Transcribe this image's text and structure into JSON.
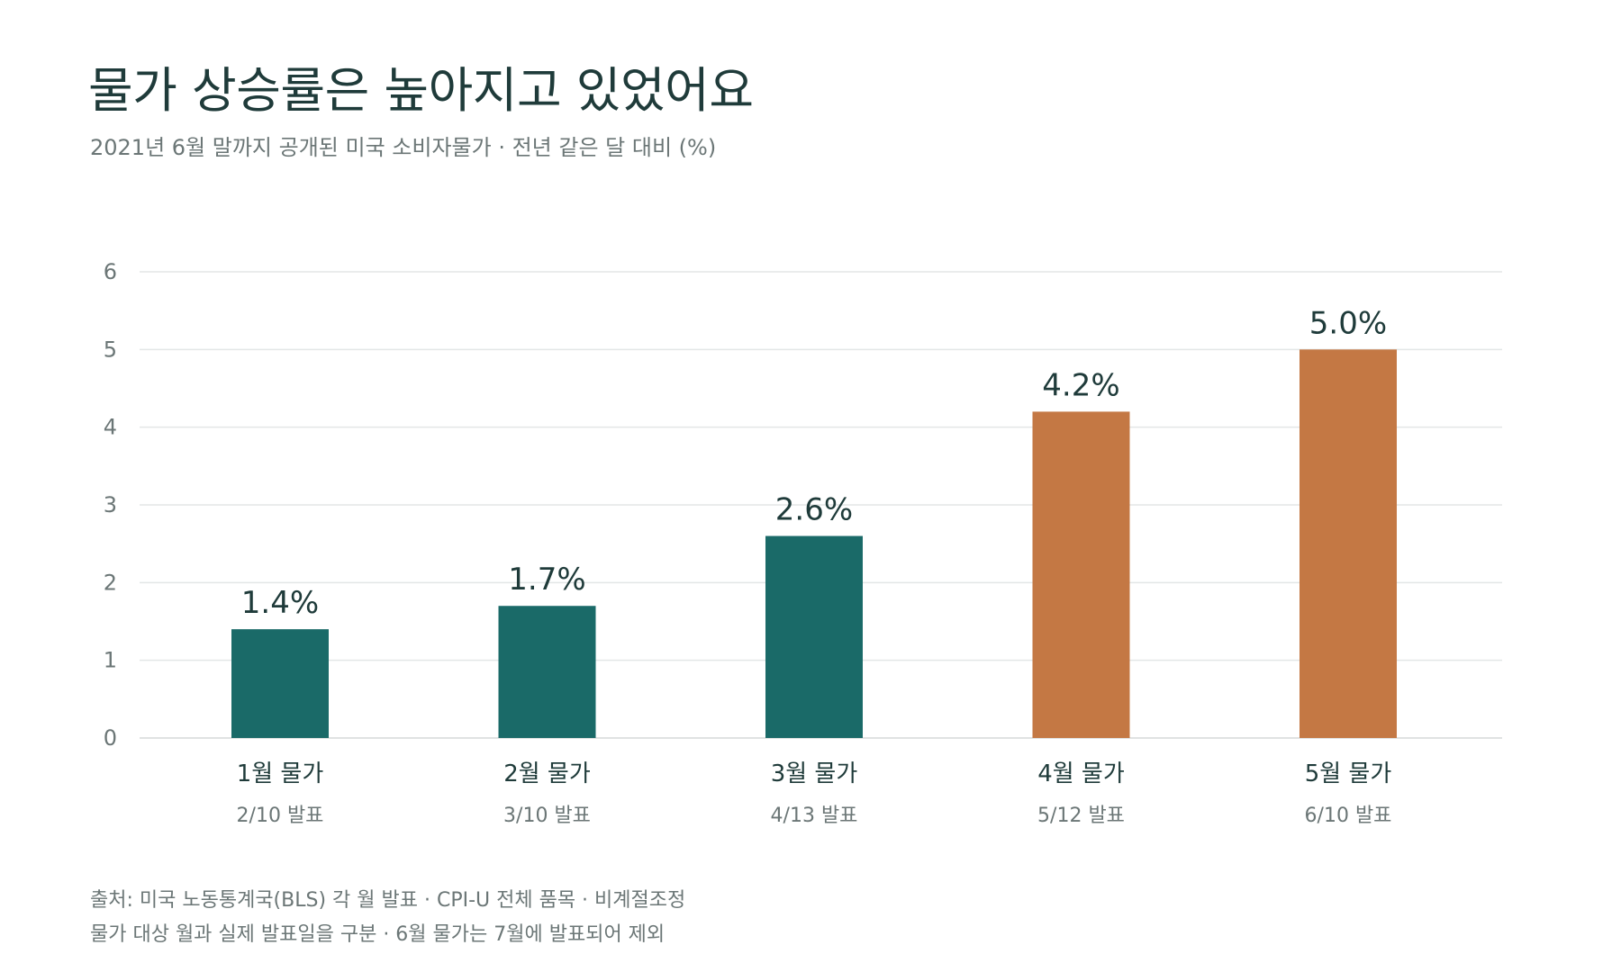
{
  "header": {
    "title": "물가 상승률은 높아지고 있었어요",
    "subtitle": "2021년 6월 말까지 공개된 미국 소비자물가 · 전년 같은 달 대비 (%)"
  },
  "colors": {
    "teal": "#1a6a68",
    "orange": "#c47844",
    "grid": "#e3e6e6",
    "axis_text": "#6b7676",
    "label_text": "#1f3b3a"
  },
  "chart_data": {
    "type": "bar",
    "title": "물가 상승률은 높아지고 있었어요",
    "subtitle": "2021년 6월 말까지 공개된 미국 소비자물가 · 전년 같은 달 대비 (%)",
    "categories": [
      "1월 물가",
      "2월 물가",
      "3월 물가",
      "4월 물가",
      "5월 물가"
    ],
    "sublabels": [
      "2/10 발표",
      "3/10 발표",
      "4/13 발표",
      "5/12 발표",
      "6/10 발표"
    ],
    "values": [
      1.4,
      1.7,
      2.6,
      4.2,
      5.0
    ],
    "value_labels": [
      "1.4%",
      "1.7%",
      "2.6%",
      "4.2%",
      "5.0%"
    ],
    "bar_colors": [
      "#1a6a68",
      "#1a6a68",
      "#1a6a68",
      "#c47844",
      "#c47844"
    ],
    "ylim": [
      0,
      6
    ],
    "yticks": [
      "0",
      "1",
      "2",
      "3",
      "4",
      "5",
      "6"
    ],
    "grid": true,
    "xlabel": "",
    "ylabel": ""
  },
  "footnotes": [
    "출처: 미국 노동통계국(BLS) 각 월 발표 · CPI-U 전체 품목 · 비계절조정",
    "물가 대상 월과 실제 발표일을 구분 · 6월 물가는 7월에 발표되어 제외"
  ]
}
